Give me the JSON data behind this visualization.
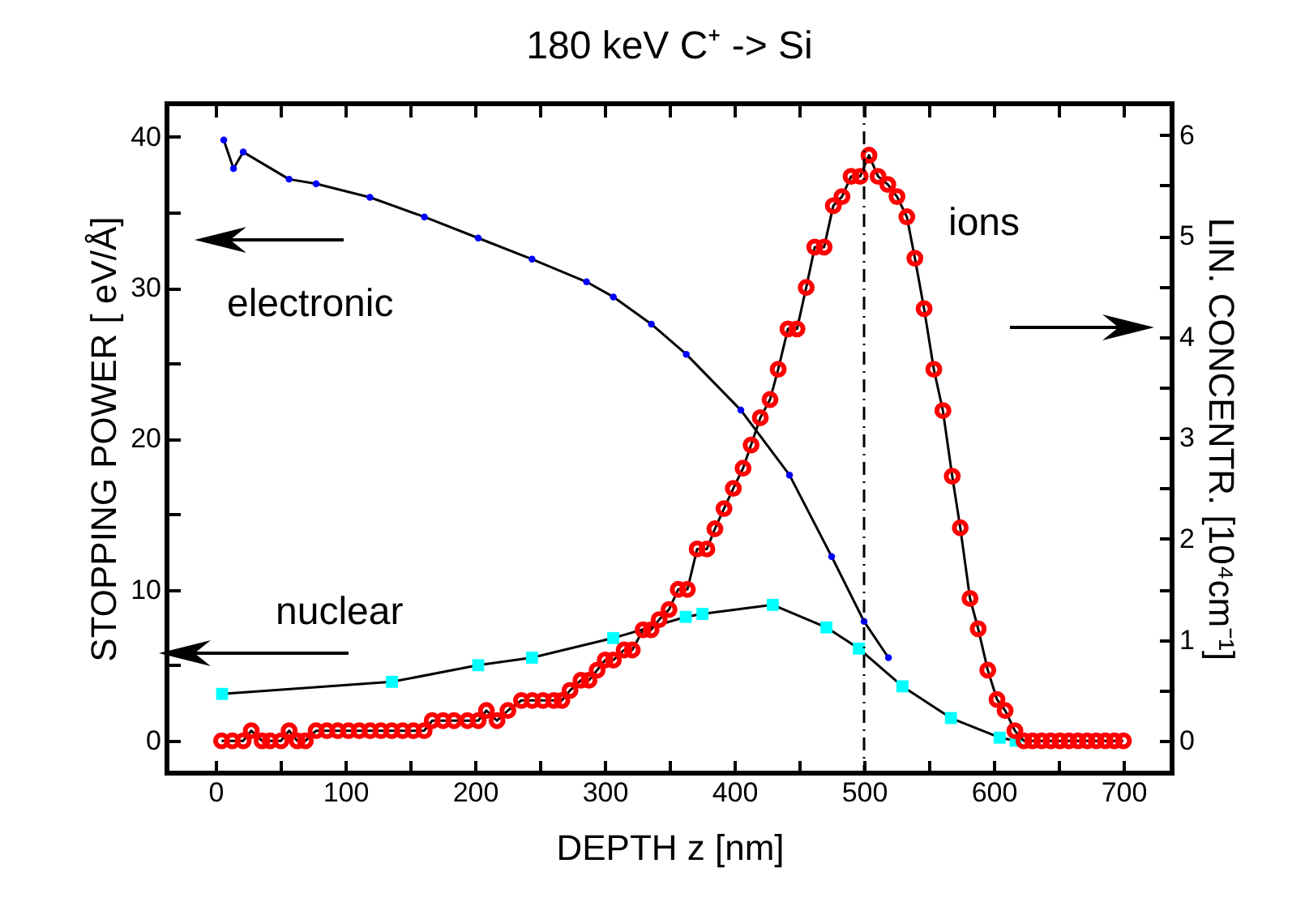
{
  "chart_data": {
    "type": "line",
    "title": "180 keV  C⁺ -> Si",
    "xlabel": "DEPTH  z [nm]",
    "ylabel": "STOPPING POWER  [ eV/Å]",
    "y2label": "LIN. CONCENTR.  [10⁴cm⁻¹]",
    "xlim": [
      -37.5,
      737.5
    ],
    "ylim": [
      -2.15,
      42.2
    ],
    "y2lim": [
      -0.32,
      6.31
    ],
    "xticks": [
      0,
      {
        "value": 50,
        "label": null
      },
      100,
      {
        "value": 150,
        "label": null
      },
      200,
      {
        "value": 250,
        "label": null
      },
      300,
      {
        "value": 350,
        "label": null
      },
      400,
      {
        "value": 450,
        "label": null
      },
      500,
      {
        "value": 550,
        "label": null
      },
      600,
      {
        "value": 650,
        "label": null
      },
      700
    ],
    "yticks": [
      0,
      {
        "value": 5,
        "label": null
      },
      10,
      {
        "value": 15,
        "label": null
      },
      20,
      {
        "value": 25,
        "label": null
      },
      30,
      {
        "value": 35,
        "label": null
      },
      40
    ],
    "y2ticks": [
      0,
      {
        "value": 0.5,
        "label": null
      },
      1,
      {
        "value": 1.5,
        "label": null
      },
      2,
      {
        "value": 2.5,
        "label": null
      },
      3,
      {
        "value": 3.5,
        "label": null
      },
      4,
      {
        "value": 4.5,
        "label": null
      },
      5,
      {
        "value": 5.5,
        "label": null
      },
      6
    ],
    "grid": false,
    "ref_lines": [
      {
        "axis": "x",
        "value": 500,
        "line_style": "dashed"
      }
    ],
    "series": [
      {
        "name": "electronic",
        "color": "#0000ff",
        "marker": "circle",
        "x": [
          6.3,
          13.8,
          21.3,
          56.6,
          77.5,
          119,
          161,
          202.5,
          244,
          286,
          306.7,
          336,
          362.9,
          405,
          442.5,
          475,
          500,
          518.8
        ],
        "values": [
          39.8,
          37.9,
          39.0,
          37.2,
          36.9,
          36.0,
          34.7,
          33.3,
          31.9,
          30.4,
          29.4,
          27.6,
          25.6,
          21.9,
          17.6,
          12.2,
          7.9,
          5.5
        ]
      },
      {
        "name": "nuclear",
        "color": "#00ffff",
        "marker": "square",
        "x": [
          5,
          136,
          202.5,
          244,
          306.6,
          362.5,
          375.4,
          429.6,
          471,
          496,
          529.6,
          567,
          604.6,
          617
        ],
        "values": [
          3.1,
          3.9,
          5.0,
          5.5,
          6.8,
          8.2,
          8.4,
          9.0,
          7.5,
          6.1,
          3.6,
          1.5,
          0.2,
          0
        ]
      },
      {
        "name": "ions",
        "color": "#ff0000",
        "marker": "circle",
        "axis": "y2",
        "x": [
          4.6,
          12.9,
          21.3,
          27.5,
          35.8,
          42,
          50.4,
          56.7,
          62.9,
          69.2,
          77.5,
          85.8,
          94.2,
          102.5,
          110.8,
          119.2,
          127.5,
          135.8,
          144.2,
          152.5,
          160.8,
          167,
          175.4,
          183.8,
          194.2,
          202.5,
          208.8,
          217,
          225.4,
          235.8,
          244.2,
          252.5,
          260.8,
          267,
          273.3,
          281.7,
          287.9,
          294.2,
          300.4,
          306.7,
          315,
          321.3,
          329.6,
          335.8,
          342,
          349.6,
          356.7,
          363.8,
          371.3,
          378.8,
          385,
          392,
          399.2,
          406.7,
          412.9,
          420,
          427.5,
          433.8,
          441.3,
          448.3,
          455.4,
          462,
          469.2,
          476.3,
          483,
          490,
          497,
          503.8,
          510.8,
          518.3,
          525.4,
          533,
          539.2,
          546.3,
          553.8,
          560.8,
          568,
          574.2,
          581.7,
          588,
          595.4,
          602.5,
          608.8,
          616.3,
          623.3,
          630,
          637,
          644,
          651,
          658,
          665,
          672,
          679,
          686,
          693,
          700
        ],
        "values": [
          0,
          0,
          0,
          0.1,
          0,
          0,
          0,
          0.1,
          0,
          0,
          0.1,
          0.1,
          0.1,
          0.1,
          0.1,
          0.1,
          0.1,
          0.1,
          0.1,
          0.1,
          0.1,
          0.2,
          0.2,
          0.2,
          0.2,
          0.2,
          0.3,
          0.2,
          0.3,
          0.4,
          0.4,
          0.4,
          0.4,
          0.4,
          0.5,
          0.6,
          0.6,
          0.7,
          0.8,
          0.8,
          0.9,
          0.9,
          1.1,
          1.1,
          1.2,
          1.3,
          1.5,
          1.5,
          1.9,
          1.9,
          2.1,
          2.3,
          2.5,
          2.7,
          2.93,
          3.2,
          3.38,
          3.68,
          4.08,
          4.08,
          4.49,
          4.89,
          4.89,
          5.3,
          5.39,
          5.59,
          5.59,
          5.8,
          5.59,
          5.51,
          5.39,
          5.19,
          4.78,
          4.28,
          3.68,
          3.27,
          2.62,
          2.11,
          1.41,
          1.11,
          0.7,
          0.41,
          0.3,
          0.1,
          0,
          0,
          0,
          0,
          0,
          0,
          0,
          0,
          0,
          0,
          0,
          0
        ]
      }
    ]
  }
}
